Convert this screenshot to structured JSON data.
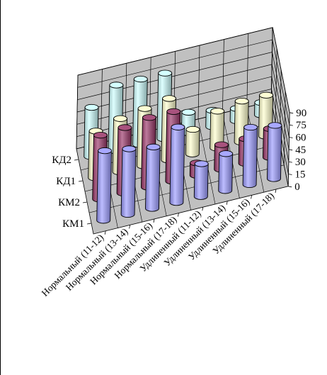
{
  "chart_data": {
    "type": "bar",
    "subtype": "3d-cylinder",
    "title": "",
    "xlabel": "",
    "ylabel": "",
    "categories": [
      "Нормальный (11-12)",
      "Нормальный (13-14)",
      "Нормальный (15-16)",
      "Нормальный (17-18)",
      "Удлиненный (11-12)",
      "Удлиненный (13-14)",
      "Удлиненный (15-16)",
      "Удлиненный (17-18)"
    ],
    "series": [
      {
        "name": "КМ1",
        "color": "#9999ff",
        "values": [
          85,
          80,
          75,
          92,
          40,
          45,
          70,
          65
        ]
      },
      {
        "name": "КМ2",
        "color": "#993366",
        "values": [
          78,
          80,
          85,
          85,
          15,
          30,
          30,
          35
        ]
      },
      {
        "name": "КД1",
        "color": "#ffffcc",
        "values": [
          57,
          65,
          70,
          75,
          30,
          45,
          50,
          50
        ]
      },
      {
        "name": "КД2",
        "color": "#ccffff",
        "values": [
          60,
          80,
          80,
          80,
          25,
          20,
          15,
          15
        ]
      }
    ],
    "ylim": [
      0,
      90
    ],
    "yticks": [
      "0",
      "15",
      "30",
      "45",
      "60",
      "75",
      "90"
    ],
    "grid": true,
    "legend": "none"
  }
}
